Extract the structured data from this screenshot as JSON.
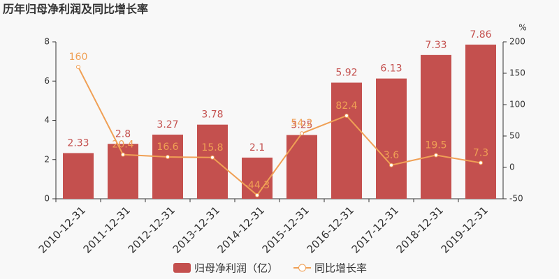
{
  "chart_data": {
    "type": "combo",
    "title": "历年归母净利润及同比增长率",
    "categories": [
      "2010-12-31",
      "2011-12-31",
      "2012-12-31",
      "2013-12-31",
      "2014-12-31",
      "2015-12-31",
      "2016-12-31",
      "2017-12-31",
      "2018-12-31",
      "2019-12-31"
    ],
    "series": [
      {
        "name": "归母净利润（亿）",
        "type": "bar",
        "color": "#c4504e",
        "values": [
          2.33,
          2.8,
          3.27,
          3.78,
          2.1,
          3.25,
          5.92,
          6.13,
          7.33,
          7.86
        ]
      },
      {
        "name": "同比增长率",
        "type": "line",
        "axis": "y2",
        "color": "#f0a055",
        "values": [
          160,
          20.4,
          16.6,
          15.8,
          -44.3,
          54.2,
          82.4,
          3.6,
          19.5,
          7.3
        ]
      }
    ],
    "ylim": [
      0,
      8
    ],
    "yticks": [
      0,
      2,
      4,
      6,
      8
    ],
    "y2label": "%",
    "y2lim": [
      -50,
      200
    ],
    "y2ticks": [
      -50,
      0,
      50,
      100,
      150,
      200
    ]
  }
}
